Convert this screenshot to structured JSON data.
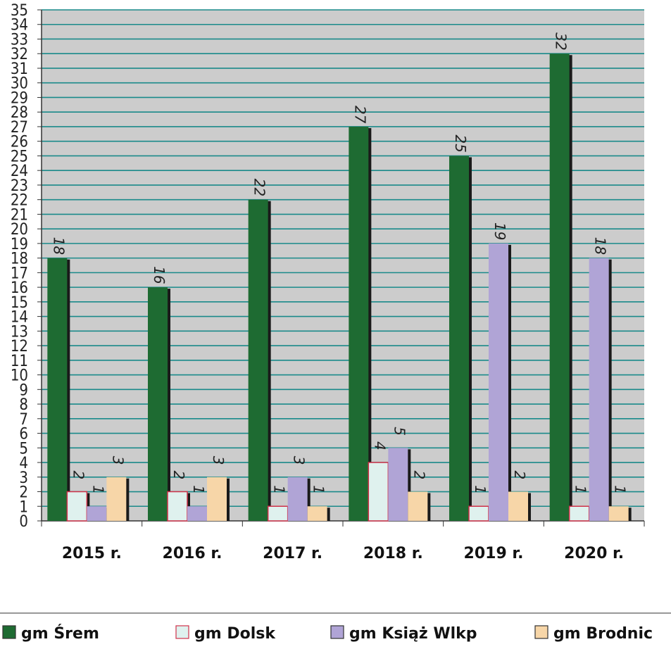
{
  "chart_data": {
    "type": "bar",
    "categories": [
      "2015 r.",
      "2016 r.",
      "2017 r.",
      "2018 r.",
      "2019 r.",
      "2020 r."
    ],
    "series": [
      {
        "name": "gm Śrem",
        "values": [
          18,
          16,
          22,
          27,
          25,
          32
        ],
        "color": "#1e6b32"
      },
      {
        "name": "gm Dolsk",
        "values": [
          2,
          2,
          1,
          4,
          1,
          1
        ],
        "color": "#dff1ee",
        "border": "#d0324a"
      },
      {
        "name": "gm Książ Wlkp",
        "values": [
          1,
          1,
          3,
          5,
          19,
          18
        ],
        "color": "#b0a4d6"
      },
      {
        "name": "gm Brodnic",
        "values": [
          3,
          3,
          1,
          2,
          2,
          1
        ],
        "color": "#f7d6a8"
      }
    ],
    "ylim": [
      0,
      35
    ],
    "yticks": [
      0,
      1,
      2,
      3,
      4,
      5,
      6,
      7,
      8,
      9,
      10,
      11,
      12,
      13,
      14,
      15,
      16,
      17,
      18,
      19,
      20,
      21,
      22,
      23,
      24,
      25,
      26,
      27,
      28,
      29,
      30,
      31,
      32,
      33,
      34,
      35
    ],
    "grid": true,
    "plot_background": "#cccccc",
    "grid_color": "#1a8a8a",
    "legend_position": "bottom"
  }
}
